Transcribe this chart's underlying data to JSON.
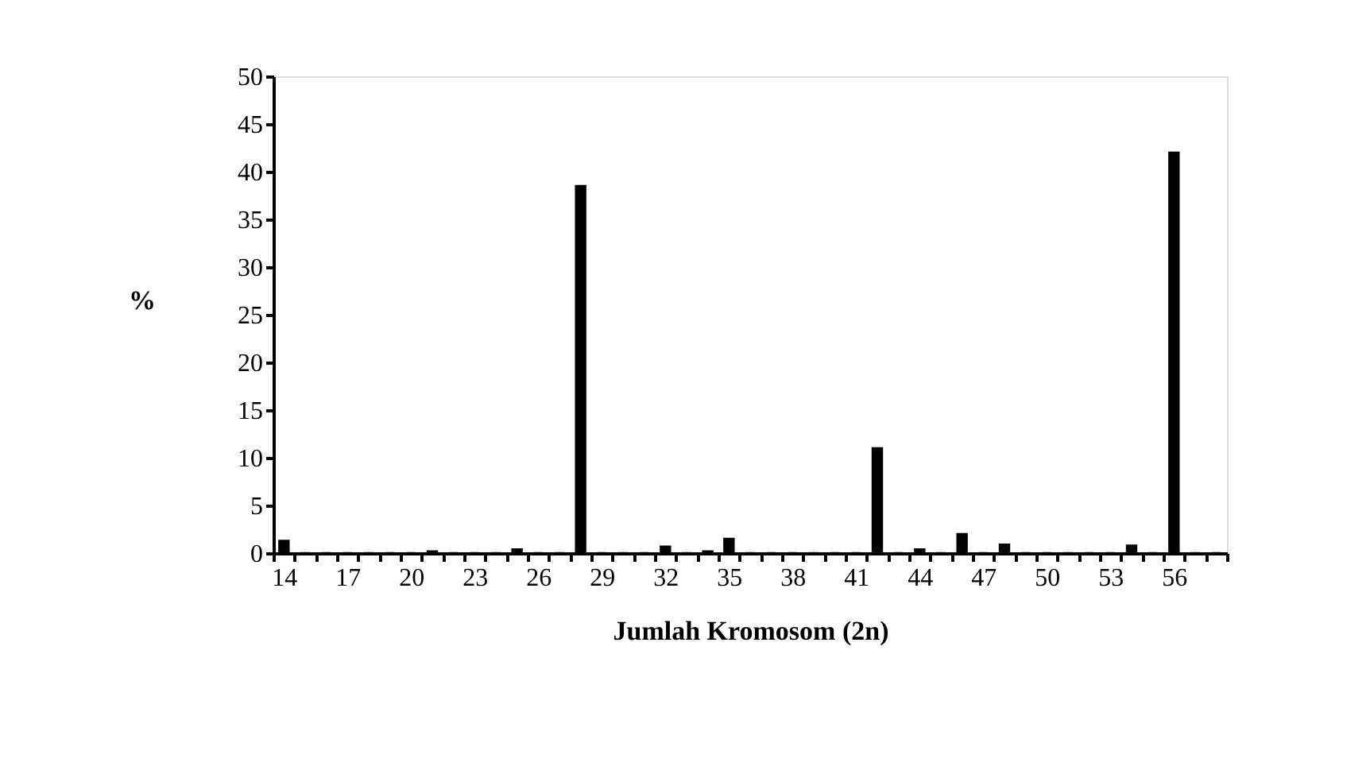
{
  "chart_data": {
    "type": "bar",
    "xlabel": "Jumlah Kromosom (2n)",
    "ylabel": "%",
    "categories": [
      "14",
      null,
      null,
      "17",
      null,
      null,
      "20",
      null,
      null,
      "23",
      null,
      null,
      "26",
      null,
      null,
      "29",
      null,
      null,
      "32",
      null,
      null,
      "35",
      null,
      null,
      "38",
      null,
      null,
      "41",
      null,
      null,
      "44",
      null,
      null,
      "47",
      null,
      null,
      "50",
      null,
      null,
      "53",
      null,
      null,
      "56",
      null,
      null
    ],
    "values": [
      1.3,
      0,
      0,
      0,
      0,
      0,
      0,
      0.2,
      0,
      0,
      0,
      0.4,
      0,
      0,
      38.5,
      0,
      0,
      0,
      0.7,
      0,
      0.2,
      1.5,
      0,
      0,
      0,
      0,
      0,
      0,
      11,
      0,
      0.4,
      0,
      2,
      0,
      0.9,
      0,
      0,
      0,
      0,
      0,
      0.8,
      0,
      42,
      0,
      0
    ],
    "color": "#000000",
    "ylim": [
      0,
      50
    ],
    "yticks": [
      0,
      5,
      10,
      15,
      20,
      25,
      30,
      35,
      40,
      45,
      50
    ],
    "grid": false
  }
}
